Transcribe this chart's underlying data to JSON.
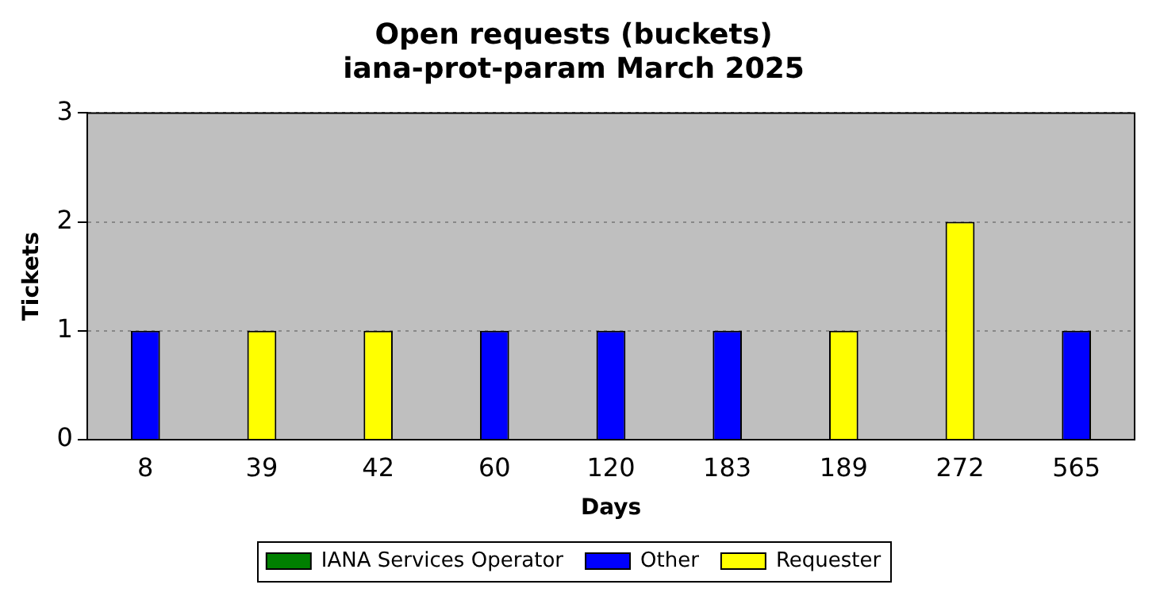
{
  "chart_data": {
    "type": "bar",
    "title": "Open requests (buckets)",
    "subtitle": "iana-prot-param March 2025",
    "xlabel": "Days",
    "ylabel": "Tickets",
    "categories": [
      "8",
      "39",
      "42",
      "60",
      "120",
      "183",
      "189",
      "272",
      "565"
    ],
    "series": [
      {
        "name": "IANA Services Operator",
        "color": "#008000",
        "values": [
          0,
          0,
          0,
          0,
          0,
          0,
          0,
          0,
          0
        ]
      },
      {
        "name": "Other",
        "color": "#0000ff",
        "values": [
          1,
          0,
          0,
          1,
          1,
          1,
          0,
          0,
          1
        ]
      },
      {
        "name": "Requester",
        "color": "#ffff00",
        "values": [
          0,
          1,
          1,
          0,
          0,
          0,
          1,
          2,
          0
        ]
      }
    ],
    "ylim": [
      0,
      3
    ],
    "yticks": [
      0,
      1,
      2,
      3
    ],
    "grid": "y",
    "legend": "bottom"
  }
}
